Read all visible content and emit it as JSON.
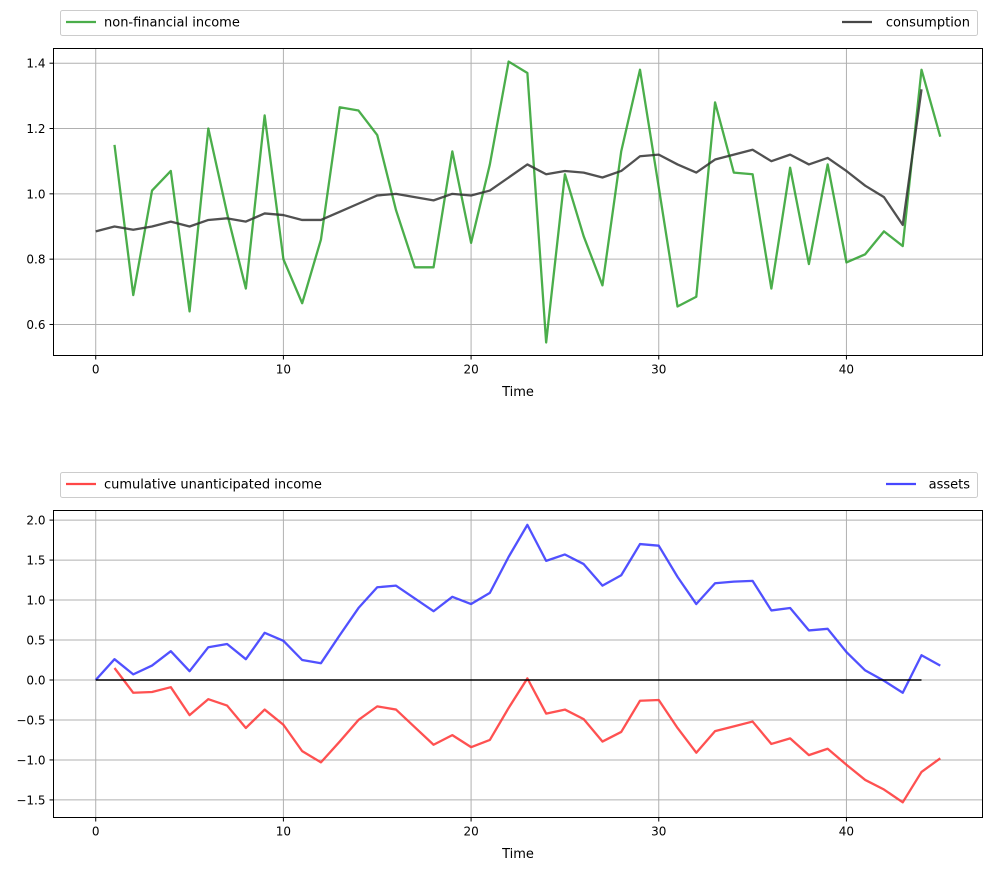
{
  "chart_data": [
    {
      "type": "line",
      "xlabel": "Time",
      "xlim": [
        -2.25,
        47.25
      ],
      "ylim": [
        0.505,
        1.445
      ],
      "xticks": [
        0,
        10,
        20,
        30,
        40
      ],
      "yticks": [
        0.6,
        0.8,
        1.0,
        1.2,
        1.4
      ],
      "ytick_labels": [
        "0.6",
        "0.8",
        "1.0",
        "1.2",
        "1.4"
      ],
      "grid": true,
      "legend": {
        "placement": "above-top",
        "entries": [
          "non-financial income",
          "consumption"
        ]
      },
      "series": [
        {
          "name": "non-financial income",
          "color": "#2ca02c",
          "x_start": 1,
          "values": [
            1.15,
            0.69,
            1.01,
            1.07,
            0.64,
            1.2,
            0.94,
            0.71,
            1.24,
            0.8,
            0.665,
            0.86,
            1.265,
            1.255,
            1.18,
            0.95,
            0.775,
            0.775,
            1.13,
            0.85,
            1.09,
            1.405,
            1.37,
            0.545,
            1.06,
            0.87,
            0.72,
            1.13,
            1.38,
            1.02,
            0.655,
            0.685,
            1.28,
            1.065,
            1.06,
            0.71,
            1.08,
            0.785,
            1.09,
            0.79,
            0.815,
            0.885,
            0.84,
            1.38,
            1.175
          ]
        },
        {
          "name": "consumption",
          "color": "#333333",
          "x_start": 0,
          "values": [
            0.885,
            0.9,
            0.89,
            0.9,
            0.915,
            0.9,
            0.92,
            0.925,
            0.915,
            0.94,
            0.935,
            0.92,
            0.92,
            0.945,
            0.97,
            0.995,
            1.0,
            0.99,
            0.98,
            1.0,
            0.995,
            1.01,
            1.05,
            1.09,
            1.06,
            1.07,
            1.065,
            1.05,
            1.07,
            1.115,
            1.12,
            1.09,
            1.065,
            1.105,
            1.12,
            1.135,
            1.1,
            1.12,
            1.09,
            1.11,
            1.07,
            1.025,
            0.99,
            0.905,
            1.32
          ]
        }
      ]
    },
    {
      "type": "line",
      "xlabel": "Time",
      "xlim": [
        -2.25,
        47.25
      ],
      "ylim": [
        -1.72,
        2.12
      ],
      "xticks": [
        0,
        10,
        20,
        30,
        40
      ],
      "yticks": [
        -1.5,
        -1.0,
        -0.5,
        0.0,
        0.5,
        1.0,
        1.5,
        2.0
      ],
      "ytick_labels": [
        "−1.5",
        "−1.0",
        "−0.5",
        "0.0",
        "0.5",
        "1.0",
        "1.5",
        "2.0"
      ],
      "grid": true,
      "legend": {
        "placement": "above-top",
        "entries": [
          "cumulative unanticipated income",
          "assets"
        ]
      },
      "series": [
        {
          "name": "cumulative unanticipated income",
          "color": "#ff3333",
          "x_start": 1,
          "values": [
            0.15,
            -0.16,
            -0.15,
            -0.09,
            -0.44,
            -0.24,
            -0.32,
            -0.6,
            -0.37,
            -0.56,
            -0.89,
            -1.03,
            -0.77,
            -0.5,
            -0.33,
            -0.37,
            -0.59,
            -0.81,
            -0.69,
            -0.84,
            -0.75,
            -0.35,
            0.02,
            -0.42,
            -0.37,
            -0.49,
            -0.77,
            -0.65,
            -0.26,
            -0.25,
            -0.6,
            -0.91,
            -0.64,
            -0.58,
            -0.52,
            -0.8,
            -0.73,
            -0.94,
            -0.86,
            -1.06,
            -1.25,
            -1.37,
            -1.53,
            -1.15,
            -0.98
          ]
        },
        {
          "name": "assets",
          "color": "#3333ff",
          "x_start": 0,
          "values": [
            0.0,
            0.26,
            0.07,
            0.18,
            0.36,
            0.11,
            0.41,
            0.45,
            0.26,
            0.59,
            0.49,
            0.25,
            0.21,
            0.56,
            0.9,
            1.16,
            1.18,
            1.02,
            0.86,
            1.04,
            0.95,
            1.09,
            1.54,
            1.94,
            1.49,
            1.57,
            1.45,
            1.18,
            1.31,
            1.7,
            1.68,
            1.29,
            0.95,
            1.21,
            1.23,
            1.24,
            0.87,
            0.9,
            0.62,
            0.64,
            0.35,
            0.12,
            -0.01,
            -0.16,
            0.31,
            0.18
          ]
        },
        {
          "name": "",
          "color": "#000000",
          "x_start": 0,
          "values": [
            0,
            0,
            0,
            0,
            0,
            0,
            0,
            0,
            0,
            0,
            0,
            0,
            0,
            0,
            0,
            0,
            0,
            0,
            0,
            0,
            0,
            0,
            0,
            0,
            0,
            0,
            0,
            0,
            0,
            0,
            0,
            0,
            0,
            0,
            0,
            0,
            0,
            0,
            0,
            0,
            0,
            0,
            0,
            0,
            0
          ]
        }
      ]
    }
  ]
}
